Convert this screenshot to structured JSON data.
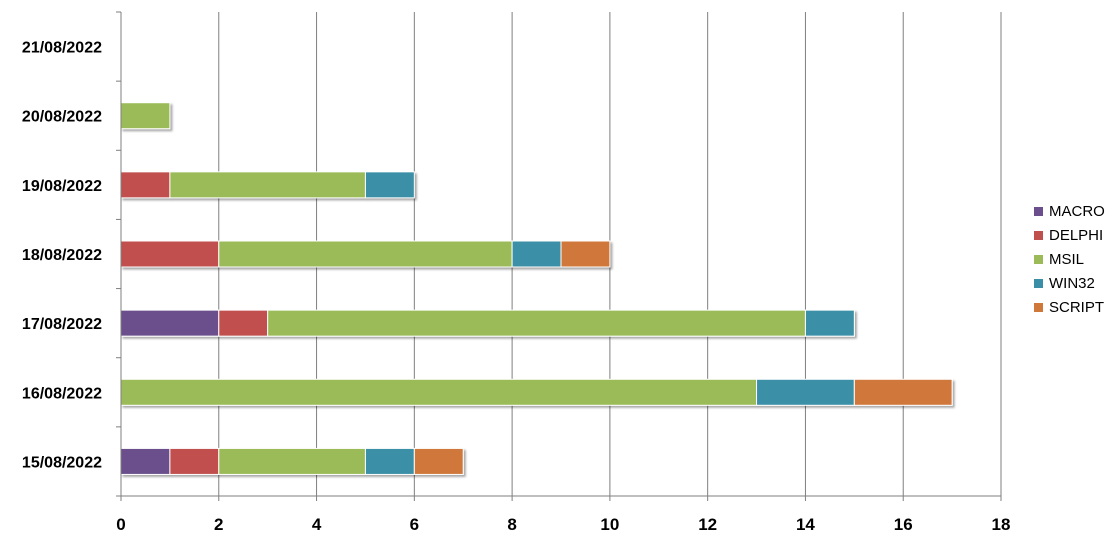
{
  "chart_data": {
    "type": "bar",
    "orientation": "horizontal",
    "stacked": true,
    "categories": [
      "15/08/2022",
      "16/08/2022",
      "17/08/2022",
      "18/08/2022",
      "19/08/2022",
      "20/08/2022",
      "21/08/2022"
    ],
    "series": [
      {
        "name": "MACRO",
        "color": "#6b4f8c",
        "values": [
          1,
          0,
          2,
          0,
          0,
          0,
          0
        ]
      },
      {
        "name": "DELPHI",
        "color": "#c0504d",
        "values": [
          1,
          0,
          1,
          2,
          1,
          0,
          0
        ]
      },
      {
        "name": "MSIL",
        "color": "#9bbb59",
        "values": [
          3,
          13,
          11,
          6,
          4,
          1,
          0
        ]
      },
      {
        "name": "WIN32",
        "color": "#3a8fa6",
        "values": [
          1,
          2,
          1,
          1,
          1,
          0,
          0
        ]
      },
      {
        "name": "SCRIPT",
        "color": "#d0783a",
        "values": [
          1,
          2,
          0,
          1,
          0,
          0,
          0
        ]
      }
    ],
    "xlim": [
      0,
      18
    ],
    "xticks": [
      "0",
      "2",
      "4",
      "6",
      "8",
      "10",
      "12",
      "14",
      "16",
      "18"
    ],
    "grid": "vertical",
    "legend": "right"
  }
}
